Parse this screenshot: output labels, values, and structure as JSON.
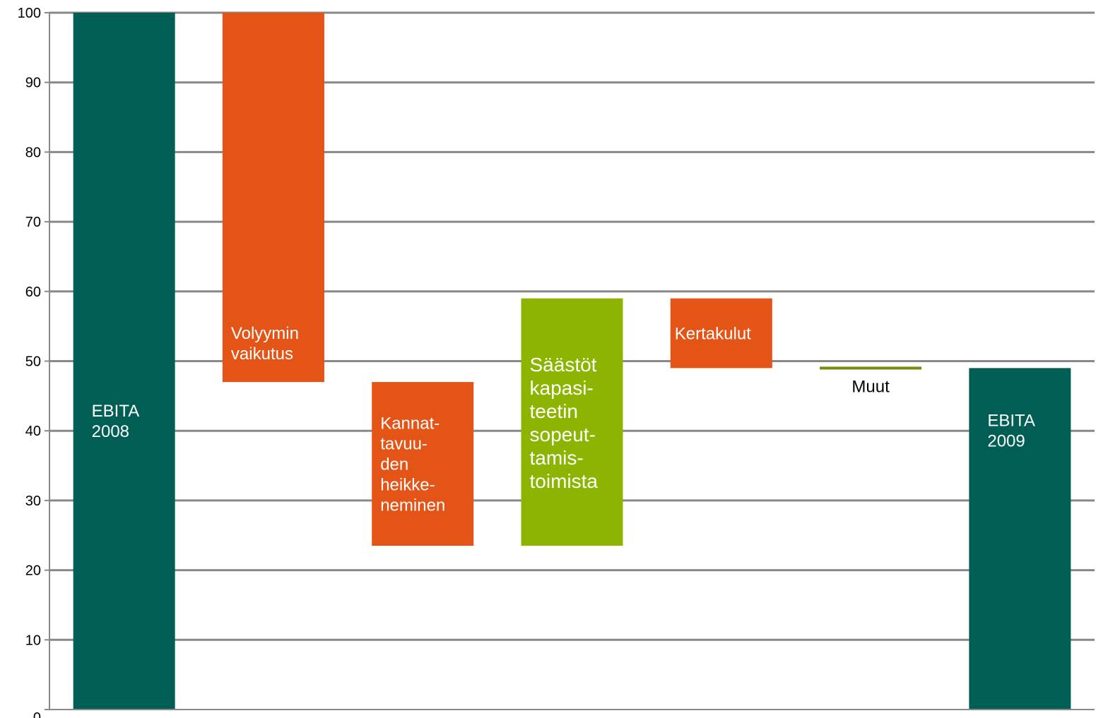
{
  "chart_data": {
    "type": "bar",
    "subtype": "waterfall",
    "title": "",
    "xlabel": "",
    "ylabel": "",
    "ylim": [
      0,
      100
    ],
    "yticks": [
      0,
      10,
      20,
      30,
      40,
      50,
      60,
      70,
      80,
      90,
      100
    ],
    "grid": true,
    "legend": "none",
    "colors": {
      "total": "#005e54",
      "decrease": "#e35416",
      "increase": "#8cb400",
      "other": "#7a8a10",
      "grid": "#888888",
      "axis": "#888888"
    },
    "bars": [
      {
        "label": [
          "EBITA",
          "2008"
        ],
        "low": 0,
        "high": 100,
        "kind": "total"
      },
      {
        "label": [
          "Volyymin",
          "vaikutus"
        ],
        "low": 47,
        "high": 100,
        "kind": "decrease"
      },
      {
        "label": [
          "Kannat-",
          "tavuu-",
          "den",
          "heikke-",
          "neminen"
        ],
        "low": 23.5,
        "high": 47,
        "kind": "decrease"
      },
      {
        "label": [
          "Säästöt",
          "kapasi-",
          "teetin",
          "sopeut-",
          "tamis-",
          "toimista"
        ],
        "low": 23.5,
        "high": 59,
        "kind": "increase"
      },
      {
        "label": [
          "Kertakulut"
        ],
        "low": 49,
        "high": 59,
        "kind": "decrease"
      },
      {
        "label": [
          "Muut"
        ],
        "low": 48.8,
        "high": 49.2,
        "kind": "other"
      },
      {
        "label": [
          "EBITA",
          "2009"
        ],
        "low": 0,
        "high": 49,
        "kind": "total"
      }
    ]
  }
}
